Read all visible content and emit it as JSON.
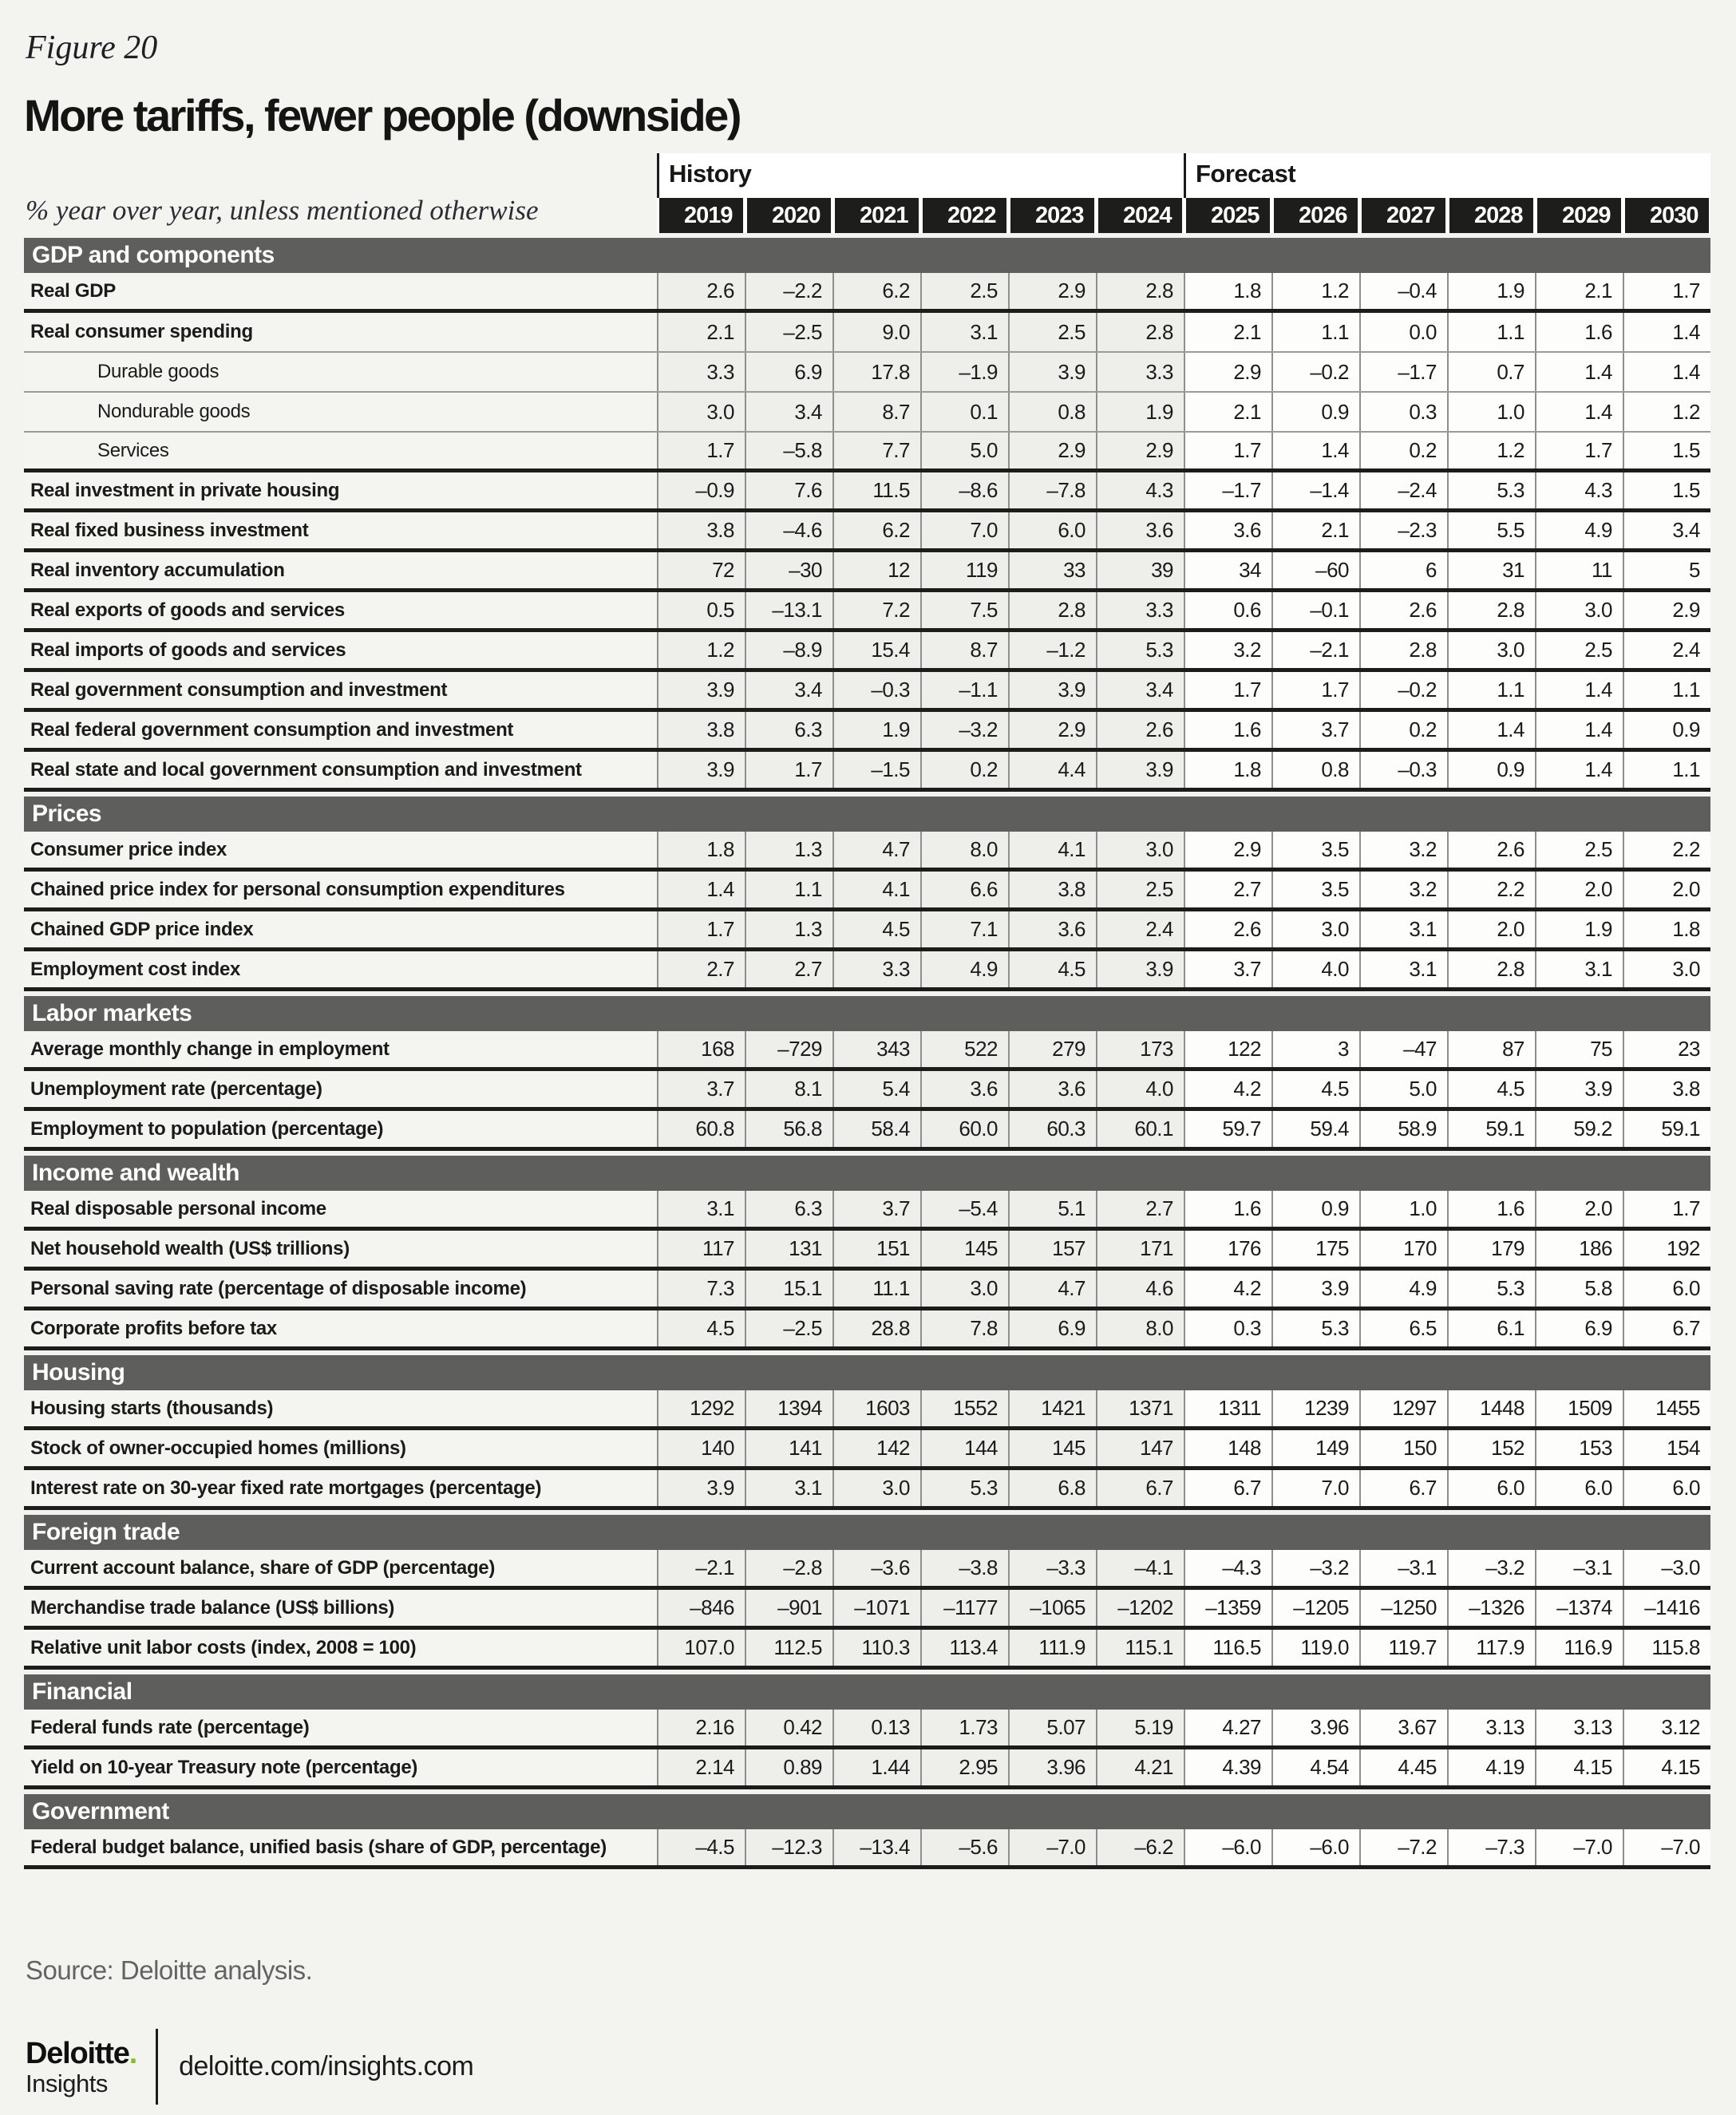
{
  "figure_label": "Figure 20",
  "title": "More tariffs, fewer people (downside)",
  "subtitle": "% year over year, unless mentioned otherwise",
  "source": "Source: Deloitte analysis.",
  "footer": {
    "brand_name": "Deloitte",
    "brand_dot": ".",
    "brand_sub": "Insights",
    "url": "deloitte.com/insights.com"
  },
  "colors": {
    "page_background": "#f3f3ef",
    "section_bar": "#5e5e5c",
    "year_cell_background": "#1d1d1b",
    "history_cell_tint": "#eeeeea",
    "forecast_cell_background": "#fdfdfc",
    "thick_rule": "#1c1c1a",
    "thin_rule": "#9b9b98",
    "accent_green": "#86bc25",
    "source_text": "#636361"
  },
  "chart_data": {
    "type": "table",
    "title": "More tariffs, fewer people (downside)",
    "unit_note": "% year over year, unless mentioned otherwise",
    "column_groups": [
      {
        "label": "History",
        "col_span": 6
      },
      {
        "label": "Forecast",
        "col_span": 6
      }
    ],
    "columns": [
      "2019",
      "2020",
      "2021",
      "2022",
      "2023",
      "2024",
      "2025",
      "2026",
      "2027",
      "2028",
      "2029",
      "2030"
    ],
    "sections": [
      {
        "label": "GDP and components",
        "rows": [
          {
            "label": "Real GDP",
            "indent": false,
            "sep": "thick",
            "values": [
              "2.6",
              "–2.2",
              "6.2",
              "2.5",
              "2.9",
              "2.8",
              "1.8",
              "1.2",
              "–0.4",
              "1.9",
              "2.1",
              "1.7"
            ]
          },
          {
            "label": "Real consumer spending",
            "indent": false,
            "sep": "thin",
            "values": [
              "2.1",
              "–2.5",
              "9.0",
              "3.1",
              "2.5",
              "2.8",
              "2.1",
              "1.1",
              "0.0",
              "1.1",
              "1.6",
              "1.4"
            ]
          },
          {
            "label": "Durable goods",
            "indent": true,
            "sep": "thin",
            "values": [
              "3.3",
              "6.9",
              "17.8",
              "–1.9",
              "3.9",
              "3.3",
              "2.9",
              "–0.2",
              "–1.7",
              "0.7",
              "1.4",
              "1.4"
            ]
          },
          {
            "label": "Nondurable goods",
            "indent": true,
            "sep": "thin",
            "values": [
              "3.0",
              "3.4",
              "8.7",
              "0.1",
              "0.8",
              "1.9",
              "2.1",
              "0.9",
              "0.3",
              "1.0",
              "1.4",
              "1.2"
            ]
          },
          {
            "label": "Services",
            "indent": true,
            "sep": "thick",
            "values": [
              "1.7",
              "–5.8",
              "7.7",
              "5.0",
              "2.9",
              "2.9",
              "1.7",
              "1.4",
              "0.2",
              "1.2",
              "1.7",
              "1.5"
            ]
          },
          {
            "label": "Real investment in private housing",
            "indent": false,
            "sep": "thick",
            "values": [
              "–0.9",
              "7.6",
              "11.5",
              "–8.6",
              "–7.8",
              "4.3",
              "–1.7",
              "–1.4",
              "–2.4",
              "5.3",
              "4.3",
              "1.5"
            ]
          },
          {
            "label": "Real fixed business investment",
            "indent": false,
            "sep": "thick",
            "values": [
              "3.8",
              "–4.6",
              "6.2",
              "7.0",
              "6.0",
              "3.6",
              "3.6",
              "2.1",
              "–2.3",
              "5.5",
              "4.9",
              "3.4"
            ]
          },
          {
            "label": "Real inventory accumulation",
            "indent": false,
            "sep": "thick",
            "values": [
              "72",
              "–30",
              "12",
              "119",
              "33",
              "39",
              "34",
              "–60",
              "6",
              "31",
              "11",
              "5"
            ]
          },
          {
            "label": "Real exports of goods and services",
            "indent": false,
            "sep": "thick",
            "values": [
              "0.5",
              "–13.1",
              "7.2",
              "7.5",
              "2.8",
              "3.3",
              "0.6",
              "–0.1",
              "2.6",
              "2.8",
              "3.0",
              "2.9"
            ]
          },
          {
            "label": "Real imports of goods and services",
            "indent": false,
            "sep": "thick",
            "values": [
              "1.2",
              "–8.9",
              "15.4",
              "8.7",
              "–1.2",
              "5.3",
              "3.2",
              "–2.1",
              "2.8",
              "3.0",
              "2.5",
              "2.4"
            ]
          },
          {
            "label": "Real government consumption and investment",
            "indent": false,
            "sep": "thick",
            "values": [
              "3.9",
              "3.4",
              "–0.3",
              "–1.1",
              "3.9",
              "3.4",
              "1.7",
              "1.7",
              "–0.2",
              "1.1",
              "1.4",
              "1.1"
            ]
          },
          {
            "label": "Real federal government consumption and investment",
            "indent": false,
            "sep": "thick",
            "values": [
              "3.8",
              "6.3",
              "1.9",
              "–3.2",
              "2.9",
              "2.6",
              "1.6",
              "3.7",
              "0.2",
              "1.4",
              "1.4",
              "0.9"
            ]
          },
          {
            "label": "Real state and local government consumption and investment",
            "indent": false,
            "sep": "thick",
            "values": [
              "3.9",
              "1.7",
              "–1.5",
              "0.2",
              "4.4",
              "3.9",
              "1.8",
              "0.8",
              "–0.3",
              "0.9",
              "1.4",
              "1.1"
            ]
          }
        ]
      },
      {
        "label": "Prices",
        "rows": [
          {
            "label": "Consumer price index",
            "indent": false,
            "sep": "thick",
            "values": [
              "1.8",
              "1.3",
              "4.7",
              "8.0",
              "4.1",
              "3.0",
              "2.9",
              "3.5",
              "3.2",
              "2.6",
              "2.5",
              "2.2"
            ]
          },
          {
            "label": "Chained price index for personal consumption expenditures",
            "indent": false,
            "sep": "thick",
            "values": [
              "1.4",
              "1.1",
              "4.1",
              "6.6",
              "3.8",
              "2.5",
              "2.7",
              "3.5",
              "3.2",
              "2.2",
              "2.0",
              "2.0"
            ]
          },
          {
            "label": "Chained GDP price index",
            "indent": false,
            "sep": "thick",
            "values": [
              "1.7",
              "1.3",
              "4.5",
              "7.1",
              "3.6",
              "2.4",
              "2.6",
              "3.0",
              "3.1",
              "2.0",
              "1.9",
              "1.8"
            ]
          },
          {
            "label": "Employment cost index",
            "indent": false,
            "sep": "thick",
            "values": [
              "2.7",
              "2.7",
              "3.3",
              "4.9",
              "4.5",
              "3.9",
              "3.7",
              "4.0",
              "3.1",
              "2.8",
              "3.1",
              "3.0"
            ]
          }
        ]
      },
      {
        "label": "Labor markets",
        "rows": [
          {
            "label": "Average monthly change in employment",
            "indent": false,
            "sep": "thick",
            "values": [
              "168",
              "–729",
              "343",
              "522",
              "279",
              "173",
              "122",
              "3",
              "–47",
              "87",
              "75",
              "23"
            ]
          },
          {
            "label": "Unemployment rate (percentage)",
            "indent": false,
            "sep": "thick",
            "values": [
              "3.7",
              "8.1",
              "5.4",
              "3.6",
              "3.6",
              "4.0",
              "4.2",
              "4.5",
              "5.0",
              "4.5",
              "3.9",
              "3.8"
            ]
          },
          {
            "label": "Employment to population (percentage)",
            "indent": false,
            "sep": "thick",
            "values": [
              "60.8",
              "56.8",
              "58.4",
              "60.0",
              "60.3",
              "60.1",
              "59.7",
              "59.4",
              "58.9",
              "59.1",
              "59.2",
              "59.1"
            ]
          }
        ]
      },
      {
        "label": "Income and wealth",
        "rows": [
          {
            "label": "Real disposable personal income",
            "indent": false,
            "sep": "thick",
            "values": [
              "3.1",
              "6.3",
              "3.7",
              "–5.4",
              "5.1",
              "2.7",
              "1.6",
              "0.9",
              "1.0",
              "1.6",
              "2.0",
              "1.7"
            ]
          },
          {
            "label": "Net household wealth (US$ trillions)",
            "indent": false,
            "sep": "thick",
            "values": [
              "117",
              "131",
              "151",
              "145",
              "157",
              "171",
              "176",
              "175",
              "170",
              "179",
              "186",
              "192"
            ]
          },
          {
            "label": "Personal saving rate (percentage of disposable income)",
            "indent": false,
            "sep": "thick",
            "values": [
              "7.3",
              "15.1",
              "11.1",
              "3.0",
              "4.7",
              "4.6",
              "4.2",
              "3.9",
              "4.9",
              "5.3",
              "5.8",
              "6.0"
            ]
          },
          {
            "label": "Corporate profits before tax",
            "indent": false,
            "sep": "thick",
            "values": [
              "4.5",
              "–2.5",
              "28.8",
              "7.8",
              "6.9",
              "8.0",
              "0.3",
              "5.3",
              "6.5",
              "6.1",
              "6.9",
              "6.7"
            ]
          }
        ]
      },
      {
        "label": "Housing",
        "rows": [
          {
            "label": "Housing starts (thousands)",
            "indent": false,
            "sep": "thick",
            "values": [
              "1292",
              "1394",
              "1603",
              "1552",
              "1421",
              "1371",
              "1311",
              "1239",
              "1297",
              "1448",
              "1509",
              "1455"
            ]
          },
          {
            "label": "Stock of owner-occupied homes (millions)",
            "indent": false,
            "sep": "thick",
            "values": [
              "140",
              "141",
              "142",
              "144",
              "145",
              "147",
              "148",
              "149",
              "150",
              "152",
              "153",
              "154"
            ]
          },
          {
            "label": "Interest rate on 30-year fixed rate mortgages (percentage)",
            "indent": false,
            "sep": "thick",
            "values": [
              "3.9",
              "3.1",
              "3.0",
              "5.3",
              "6.8",
              "6.7",
              "6.7",
              "7.0",
              "6.7",
              "6.0",
              "6.0",
              "6.0"
            ]
          }
        ]
      },
      {
        "label": "Foreign trade",
        "rows": [
          {
            "label": "Current account balance, share of GDP (percentage)",
            "indent": false,
            "sep": "thick",
            "values": [
              "–2.1",
              "–2.8",
              "–3.6",
              "–3.8",
              "–3.3",
              "–4.1",
              "–4.3",
              "–3.2",
              "–3.1",
              "–3.2",
              "–3.1",
              "–3.0"
            ]
          },
          {
            "label": "Merchandise trade balance (US$ billions)",
            "indent": false,
            "sep": "thick",
            "values": [
              "–846",
              "–901",
              "–1071",
              "–1177",
              "–1065",
              "–1202",
              "–1359",
              "–1205",
              "–1250",
              "–1326",
              "–1374",
              "–1416"
            ]
          },
          {
            "label": "Relative unit labor costs (index, 2008 = 100)",
            "indent": false,
            "sep": "thick",
            "values": [
              "107.0",
              "112.5",
              "110.3",
              "113.4",
              "111.9",
              "115.1",
              "116.5",
              "119.0",
              "119.7",
              "117.9",
              "116.9",
              "115.8"
            ]
          }
        ]
      },
      {
        "label": "Financial",
        "rows": [
          {
            "label": "Federal funds rate (percentage)",
            "indent": false,
            "sep": "thick",
            "values": [
              "2.16",
              "0.42",
              "0.13",
              "1.73",
              "5.07",
              "5.19",
              "4.27",
              "3.96",
              "3.67",
              "3.13",
              "3.13",
              "3.12"
            ]
          },
          {
            "label": "Yield on 10-year Treasury note (percentage)",
            "indent": false,
            "sep": "thick",
            "values": [
              "2.14",
              "0.89",
              "1.44",
              "2.95",
              "3.96",
              "4.21",
              "4.39",
              "4.54",
              "4.45",
              "4.19",
              "4.15",
              "4.15"
            ]
          }
        ]
      },
      {
        "label": "Government",
        "rows": [
          {
            "label": "Federal budget balance, unified basis (share of GDP, percentage)",
            "indent": false,
            "sep": "thick",
            "values": [
              "–4.5",
              "–12.3",
              "–13.4",
              "–5.6",
              "–7.0",
              "–6.2",
              "–6.0",
              "–6.0",
              "–7.2",
              "–7.3",
              "–7.0",
              "–7.0"
            ]
          }
        ]
      }
    ]
  }
}
